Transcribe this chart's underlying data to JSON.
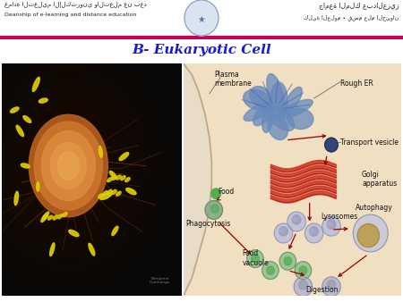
{
  "title": "B- Eukaryotic Cell",
  "title_color": "#1a1aCC",
  "title_fontsize": 11,
  "bg_color": "#FFFFFF",
  "header_line_color": "#CC0055",
  "left_text_en": "Deanship of e-learning and distance education",
  "right_text_arabic": "كلية العلوم • قسم علم الحيوان",
  "panel_left_bg": "#0a0a0a",
  "panel_right_bg": "#F2E2C8",
  "copyright_text": "Benjamin\nCummings",
  "cell_color": "#C87030",
  "cell_highlight": "#E8A050",
  "bacteria_color": "#DDCC00",
  "tendril_color": "#8B4513",
  "er_color": "#5577AA",
  "golgi_color": "#CC3322",
  "membrane_curve_color": "#D8C8A8",
  "vesicle_color": "#445588",
  "food_color": "#44AA44",
  "lyso_color": "#AAAACC",
  "auto_color": "#CC8833",
  "vacuole_color": "#88CC88",
  "dig_color": "#AAAACC",
  "arrow_color": "#990000",
  "label_color": "#111111",
  "label_fontsize": 5.5
}
